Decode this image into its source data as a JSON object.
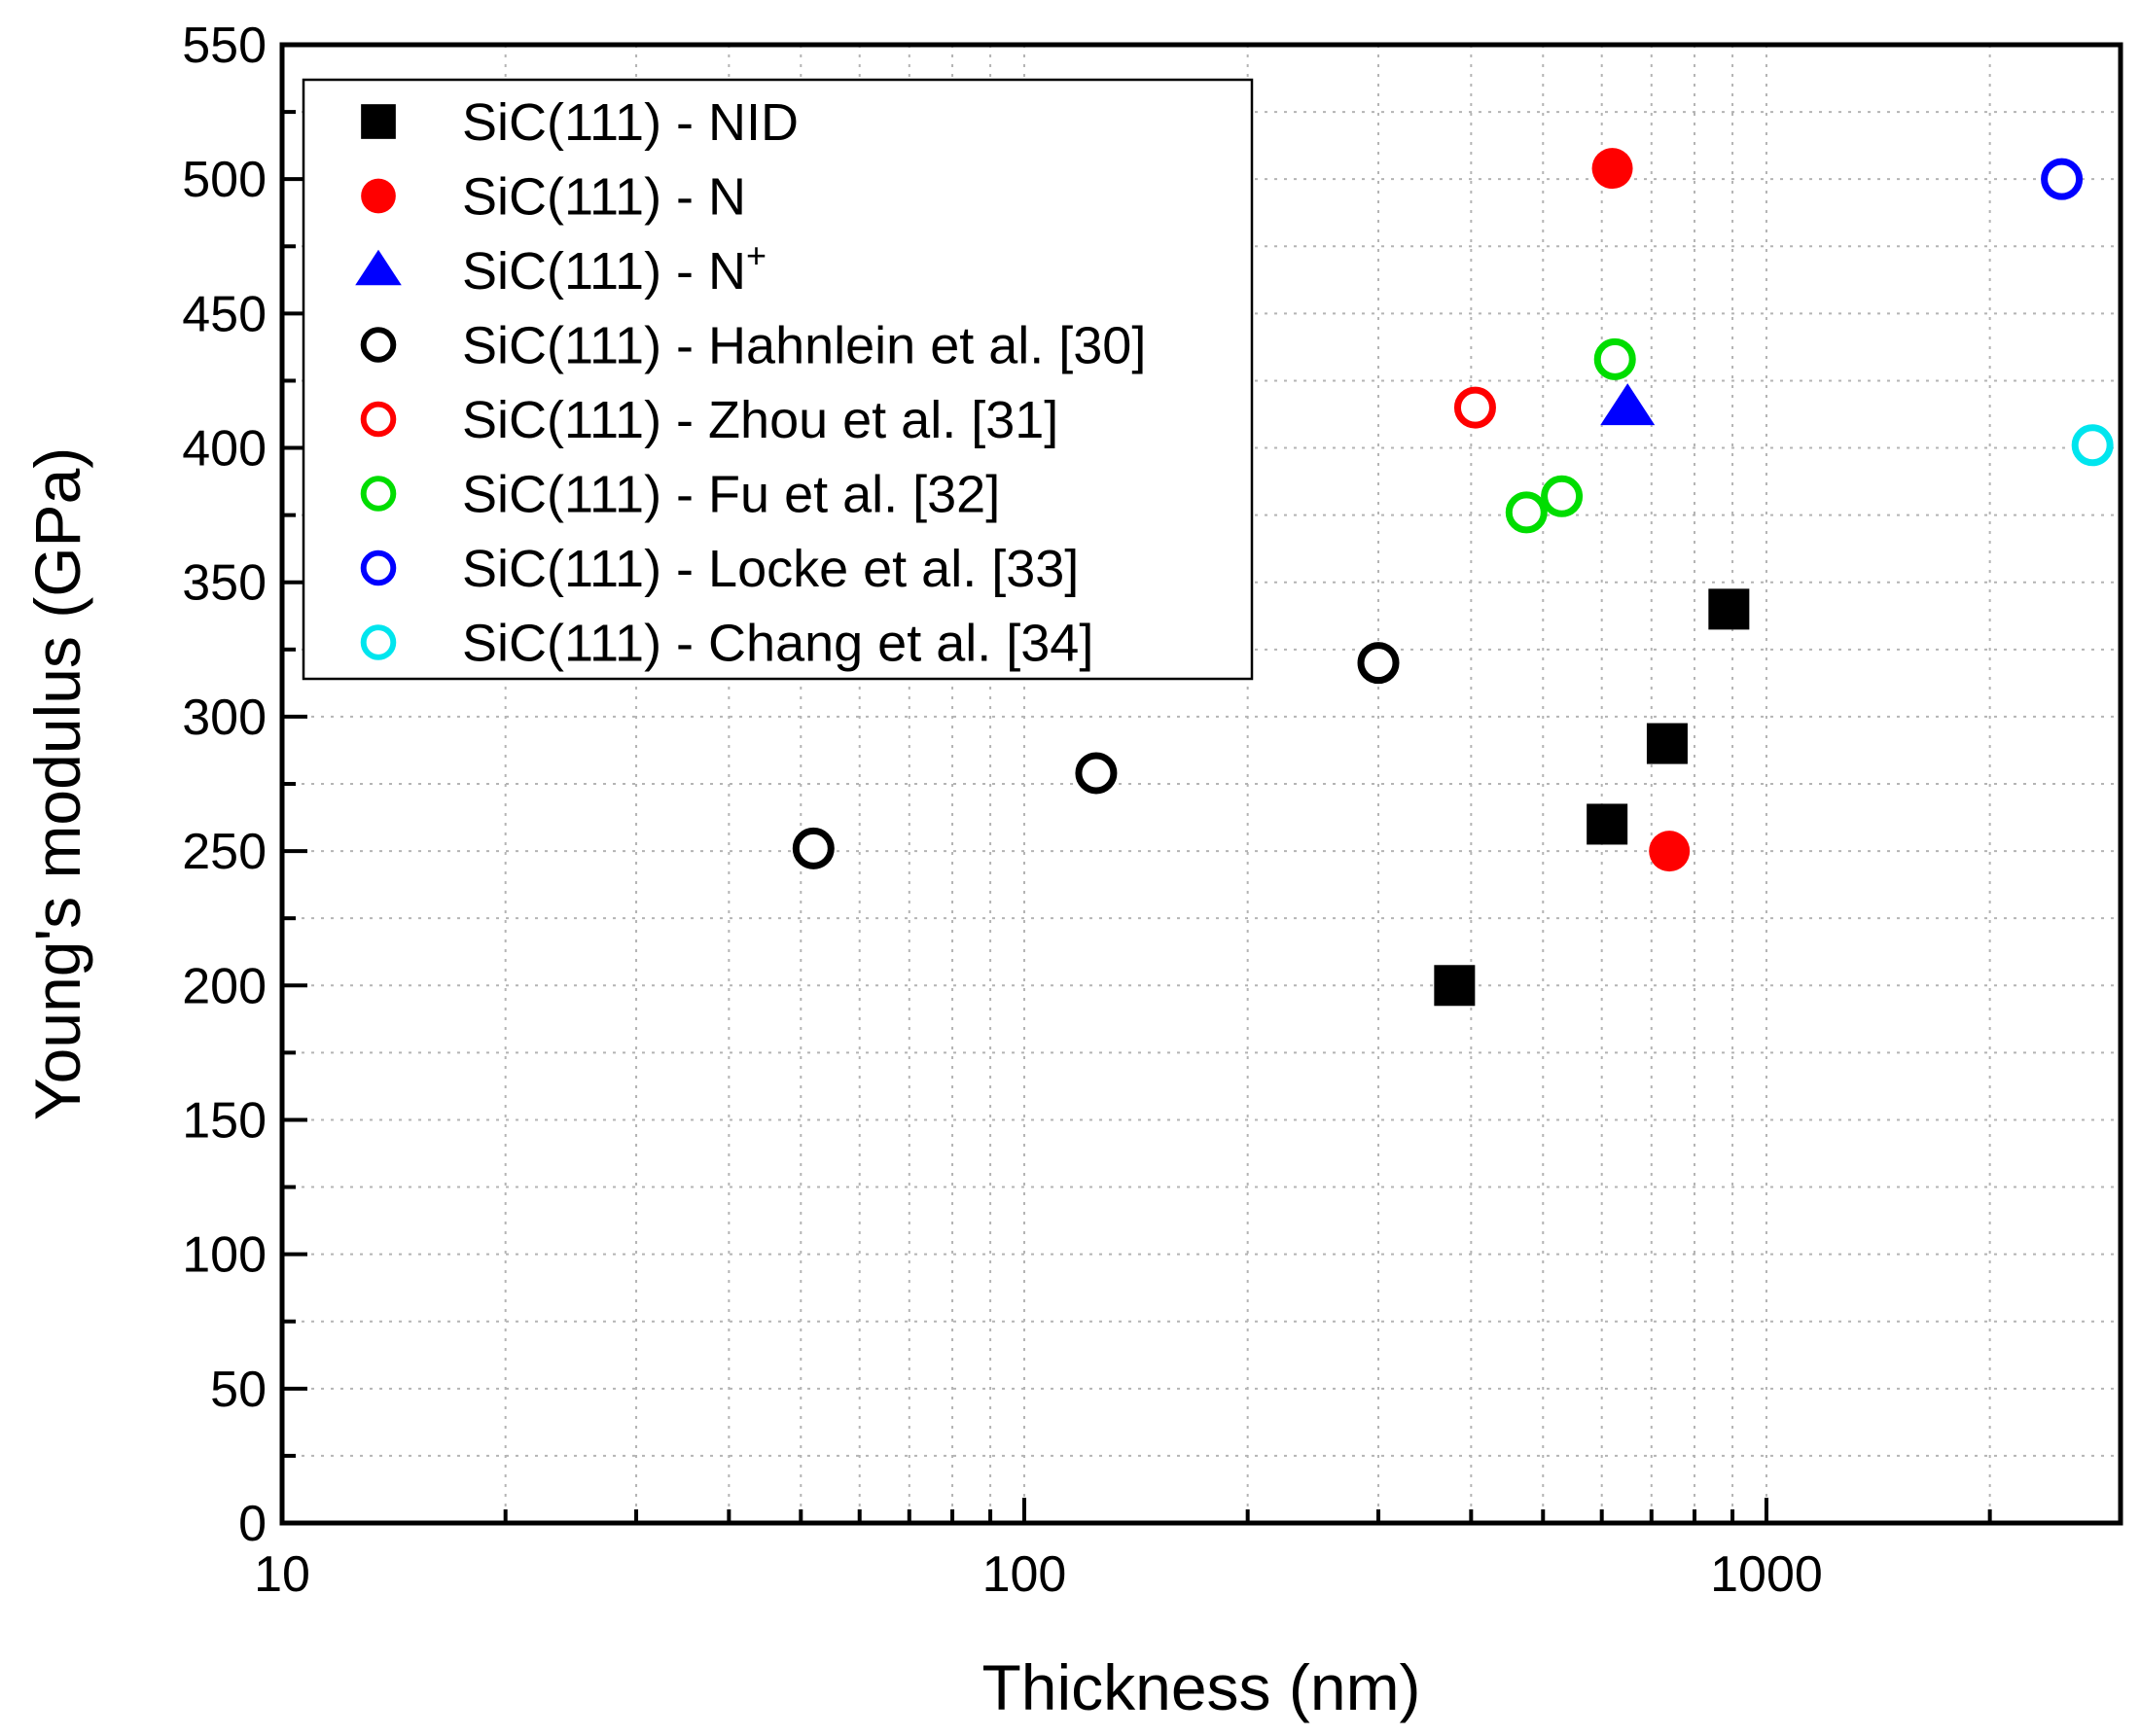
{
  "chart_data": {
    "type": "scatter",
    "title": "",
    "xlabel": "Thickness (nm)",
    "ylabel": "Young's modulus (GPa)",
    "xscale": "log",
    "xlim": [
      10,
      3000
    ],
    "ylim": [
      0,
      550
    ],
    "grid": true,
    "legend_position": "top-left",
    "x_ticks": [
      {
        "value": 10,
        "label": "10"
      },
      {
        "value": 100,
        "label": "100"
      },
      {
        "value": 1000,
        "label": "1000"
      }
    ],
    "y_ticks": [
      {
        "value": 0,
        "label": "0"
      },
      {
        "value": 50,
        "label": "50"
      },
      {
        "value": 100,
        "label": "100"
      },
      {
        "value": 150,
        "label": "150"
      },
      {
        "value": 200,
        "label": "200"
      },
      {
        "value": 250,
        "label": "250"
      },
      {
        "value": 300,
        "label": "300"
      },
      {
        "value": 350,
        "label": "350"
      },
      {
        "value": 400,
        "label": "400"
      },
      {
        "value": 450,
        "label": "450"
      },
      {
        "value": 500,
        "label": "500"
      },
      {
        "value": 550,
        "label": "550"
      }
    ],
    "series": [
      {
        "name": "SiC(111) - NID",
        "label_main": "SiC(111) - NID",
        "marker": "square",
        "filled": true,
        "color": "#000000",
        "points": [
          [
            380,
            200
          ],
          [
            610,
            260
          ],
          [
            735,
            290
          ],
          [
            890,
            340
          ]
        ]
      },
      {
        "name": "SiC(111) - N",
        "label_main": "SiC(111) - N",
        "marker": "circle",
        "filled": true,
        "color": "#ff0000",
        "points": [
          [
            620,
            504
          ],
          [
            740,
            250
          ]
        ]
      },
      {
        "name": "SiC(111) - N+",
        "label_main": "SiC(111) - N",
        "label_sup": "+",
        "marker": "triangle",
        "filled": true,
        "color": "#0000ff",
        "points": [
          [
            650,
            415
          ]
        ]
      },
      {
        "name": "SiC(111) - Hahnlein et al. [30]",
        "label_main": "SiC(111) - Hahnlein et al. [30]",
        "marker": "circle",
        "filled": false,
        "color": "#000000",
        "points": [
          [
            52,
            251
          ],
          [
            125,
            279
          ],
          [
            300,
            320
          ]
        ]
      },
      {
        "name": "SiC(111) - Zhou et al. [31]",
        "label_main": "SiC(111) - Zhou et al. [31]",
        "marker": "circle",
        "filled": false,
        "color": "#ff0000",
        "points": [
          [
            405,
            415
          ]
        ]
      },
      {
        "name": "SiC(111) - Fu et al. [32]",
        "label_main": "SiC(111) - Fu et al. [32]",
        "marker": "circle",
        "filled": false,
        "color": "#00dd00",
        "points": [
          [
            475,
            376
          ],
          [
            530,
            382
          ],
          [
            625,
            433
          ]
        ]
      },
      {
        "name": "SiC(111) - Locke et al. [33]",
        "label_main": "SiC(111) - Locke et al. [33]",
        "marker": "circle",
        "filled": false,
        "color": "#0000ff",
        "points": [
          [
            2500,
            500
          ]
        ]
      },
      {
        "name": "SiC(111) - Chang et al. [34]",
        "label_main": "SiC(111) - Chang et al. [34]",
        "marker": "circle",
        "filled": false,
        "color": "#00e5ee",
        "points": [
          [
            2750,
            401
          ]
        ]
      }
    ]
  }
}
